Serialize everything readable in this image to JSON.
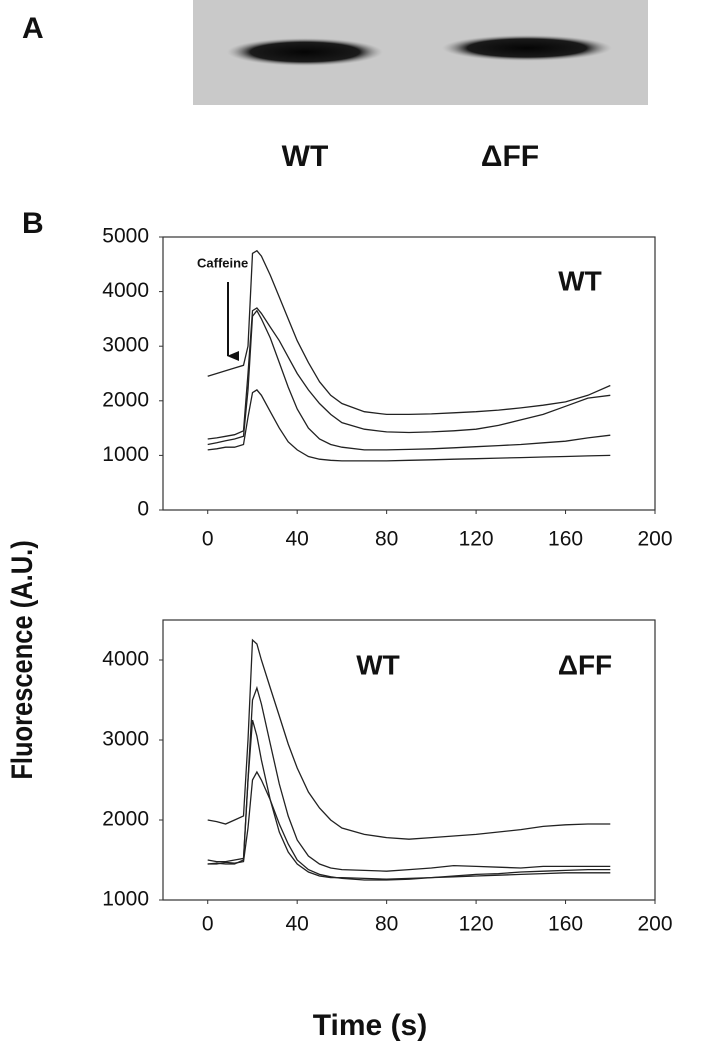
{
  "panel_labels": [
    "A",
    "B"
  ],
  "blot": {
    "lanes": [
      "WT",
      "ΔFF"
    ]
  },
  "y_label": "Fluorescence (A.U.)",
  "x_label": "Time (s)",
  "chart_data": [
    {
      "type": "line",
      "x": [
        0,
        4,
        8,
        12,
        16,
        18,
        20,
        22,
        24,
        28,
        32,
        36,
        40,
        45,
        50,
        55,
        60,
        70,
        80,
        90,
        100,
        110,
        120,
        130,
        140,
        150,
        160,
        170,
        180
      ],
      "series": [
        {
          "color": "#222222",
          "values": [
            2450,
            2500,
            2550,
            2600,
            2650,
            3000,
            4700,
            4750,
            4650,
            4300,
            3900,
            3500,
            3100,
            2700,
            2350,
            2100,
            1950,
            1800,
            1750,
            1750,
            1760,
            1780,
            1800,
            1830,
            1870,
            1920,
            1980,
            2100,
            2280
          ]
        },
        {
          "color": "#222222",
          "values": [
            1300,
            1320,
            1350,
            1380,
            1450,
            2500,
            3650,
            3700,
            3600,
            3350,
            3100,
            2800,
            2500,
            2200,
            1950,
            1750,
            1600,
            1480,
            1430,
            1420,
            1430,
            1450,
            1480,
            1550,
            1650,
            1750,
            1900,
            2050,
            2100
          ]
        },
        {
          "color": "#222222",
          "values": [
            1200,
            1230,
            1270,
            1300,
            1350,
            2200,
            3550,
            3650,
            3500,
            3150,
            2700,
            2250,
            1850,
            1500,
            1300,
            1200,
            1150,
            1100,
            1100,
            1110,
            1120,
            1140,
            1160,
            1180,
            1200,
            1230,
            1260,
            1320,
            1370
          ]
        },
        {
          "color": "#222222",
          "values": [
            1100,
            1120,
            1150,
            1150,
            1200,
            1700,
            2150,
            2200,
            2100,
            1800,
            1500,
            1250,
            1100,
            980,
            930,
            910,
            900,
            900,
            900,
            910,
            920,
            930,
            940,
            950,
            960,
            970,
            980,
            990,
            1000
          ]
        }
      ],
      "xlim": [
        -20,
        200
      ],
      "ylim": [
        0,
        5000
      ],
      "xticks": [
        0,
        40,
        80,
        120,
        160,
        200
      ],
      "yticks": [
        0,
        1000,
        2000,
        3000,
        4000,
        5000
      ],
      "annotations": [
        "Caffeine",
        "WT"
      ]
    },
    {
      "type": "line",
      "x": [
        0,
        4,
        8,
        12,
        16,
        18,
        20,
        22,
        24,
        28,
        32,
        36,
        40,
        45,
        50,
        55,
        60,
        70,
        80,
        90,
        100,
        110,
        120,
        130,
        140,
        150,
        160,
        170,
        180
      ],
      "series": [
        {
          "color": "#222222",
          "values": [
            2000,
            1980,
            1950,
            2000,
            2050,
            3000,
            4250,
            4200,
            4000,
            3650,
            3300,
            2950,
            2650,
            2350,
            2150,
            2000,
            1900,
            1820,
            1780,
            1760,
            1780,
            1800,
            1820,
            1850,
            1880,
            1920,
            1940,
            1950,
            1950
          ]
        },
        {
          "color": "#222222",
          "values": [
            1500,
            1480,
            1480,
            1500,
            1520,
            2500,
            3500,
            3650,
            3450,
            2950,
            2450,
            2050,
            1750,
            1550,
            1450,
            1400,
            1380,
            1370,
            1360,
            1380,
            1400,
            1430,
            1420,
            1410,
            1400,
            1420,
            1420,
            1420,
            1420
          ]
        },
        {
          "color": "#222222",
          "values": [
            1450,
            1460,
            1450,
            1450,
            1500,
            2500,
            3250,
            3050,
            2750,
            2250,
            1850,
            1600,
            1450,
            1350,
            1300,
            1280,
            1280,
            1270,
            1260,
            1270,
            1280,
            1300,
            1320,
            1330,
            1350,
            1360,
            1370,
            1380,
            1380
          ]
        },
        {
          "color": "#222222",
          "values": [
            1450,
            1450,
            1470,
            1460,
            1480,
            1900,
            2500,
            2600,
            2500,
            2250,
            1950,
            1700,
            1500,
            1380,
            1320,
            1290,
            1270,
            1250,
            1250,
            1260,
            1280,
            1290,
            1300,
            1310,
            1320,
            1330,
            1340,
            1340,
            1340
          ]
        }
      ],
      "xlim": [
        -20,
        200
      ],
      "ylim": [
        1000,
        4500
      ],
      "xticks": [
        0,
        40,
        80,
        120,
        160,
        200
      ],
      "yticks": [
        1000,
        2000,
        3000,
        4000
      ],
      "annotations": [
        "WT",
        "ΔFF"
      ]
    }
  ]
}
